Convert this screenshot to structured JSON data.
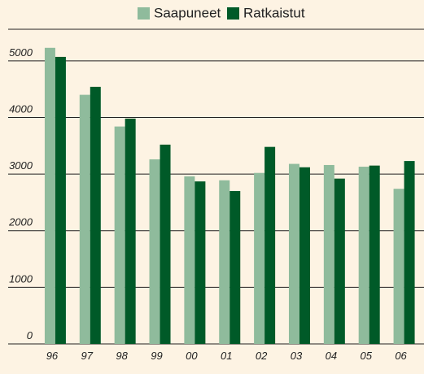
{
  "chart_data": {
    "type": "bar",
    "categories": [
      "96",
      "97",
      "98",
      "99",
      "00",
      "01",
      "02",
      "03",
      "04",
      "05",
      "06"
    ],
    "series": [
      {
        "name": "Saapuneet",
        "color": "#8fbb9c",
        "values": [
          5230,
          4400,
          3840,
          3260,
          2960,
          2890,
          3020,
          3180,
          3160,
          3130,
          2740
        ]
      },
      {
        "name": "Ratkaistut",
        "color": "#005a28",
        "values": [
          5070,
          4540,
          3980,
          3520,
          2870,
          2700,
          3480,
          3120,
          2920,
          3150,
          3230
        ]
      }
    ],
    "ylim": [
      0,
      5500
    ],
    "yticks": [
      0,
      1000,
      2000,
      3000,
      4000,
      5000
    ],
    "grid": true
  }
}
